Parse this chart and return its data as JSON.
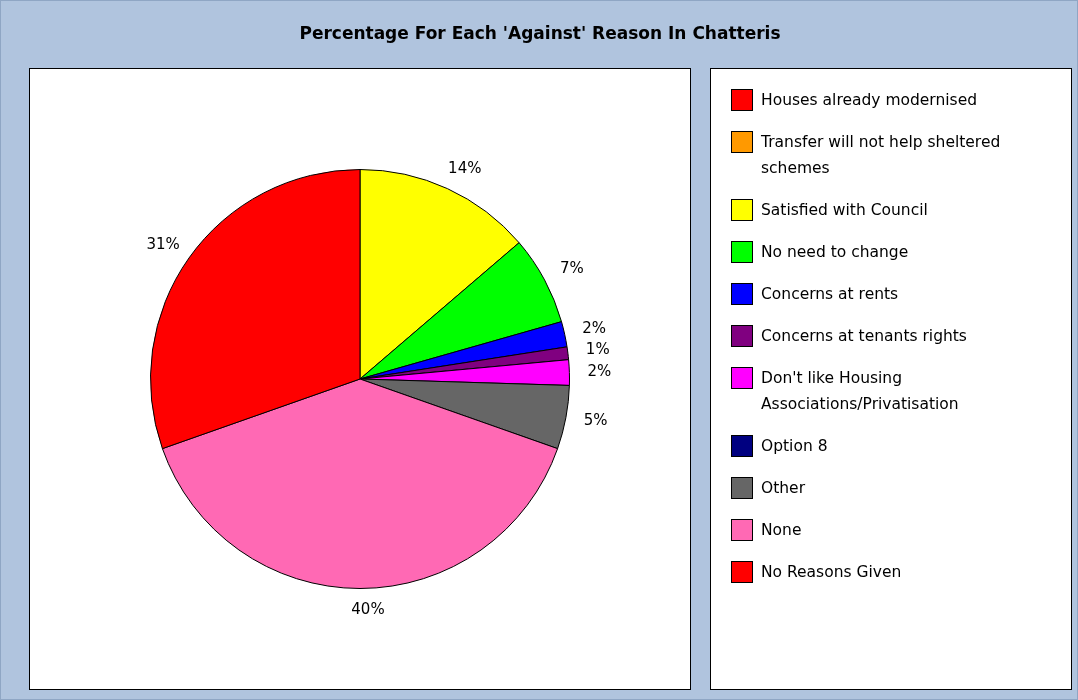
{
  "chart_data": {
    "type": "pie",
    "title": "Percentage For Each 'Against' Reason In Chatteris",
    "categories": [
      "Houses already modernised",
      "Transfer will not help sheltered schemes",
      "Satisfied with Council",
      "No need to change",
      "Concerns at rents",
      "Concerns at tenants rights",
      "Don't like Housing Associations/Privatisation",
      "Option 8",
      "Other",
      "None",
      "No Reasons Given"
    ],
    "values": [
      0,
      0,
      14,
      7,
      2,
      1,
      2,
      0,
      5,
      40,
      31
    ],
    "colors": [
      "#ff0000",
      "#ff9900",
      "#ffff00",
      "#00ff00",
      "#0000ff",
      "#800080",
      "#ff00ff",
      "#000080",
      "#666666",
      "#ff69b4",
      "#ff0000"
    ],
    "value_labels": [
      null,
      null,
      "14%",
      "7%",
      "2%",
      "1%",
      "2%",
      null,
      "5%",
      "40%",
      "31%"
    ],
    "legend": "right"
  }
}
